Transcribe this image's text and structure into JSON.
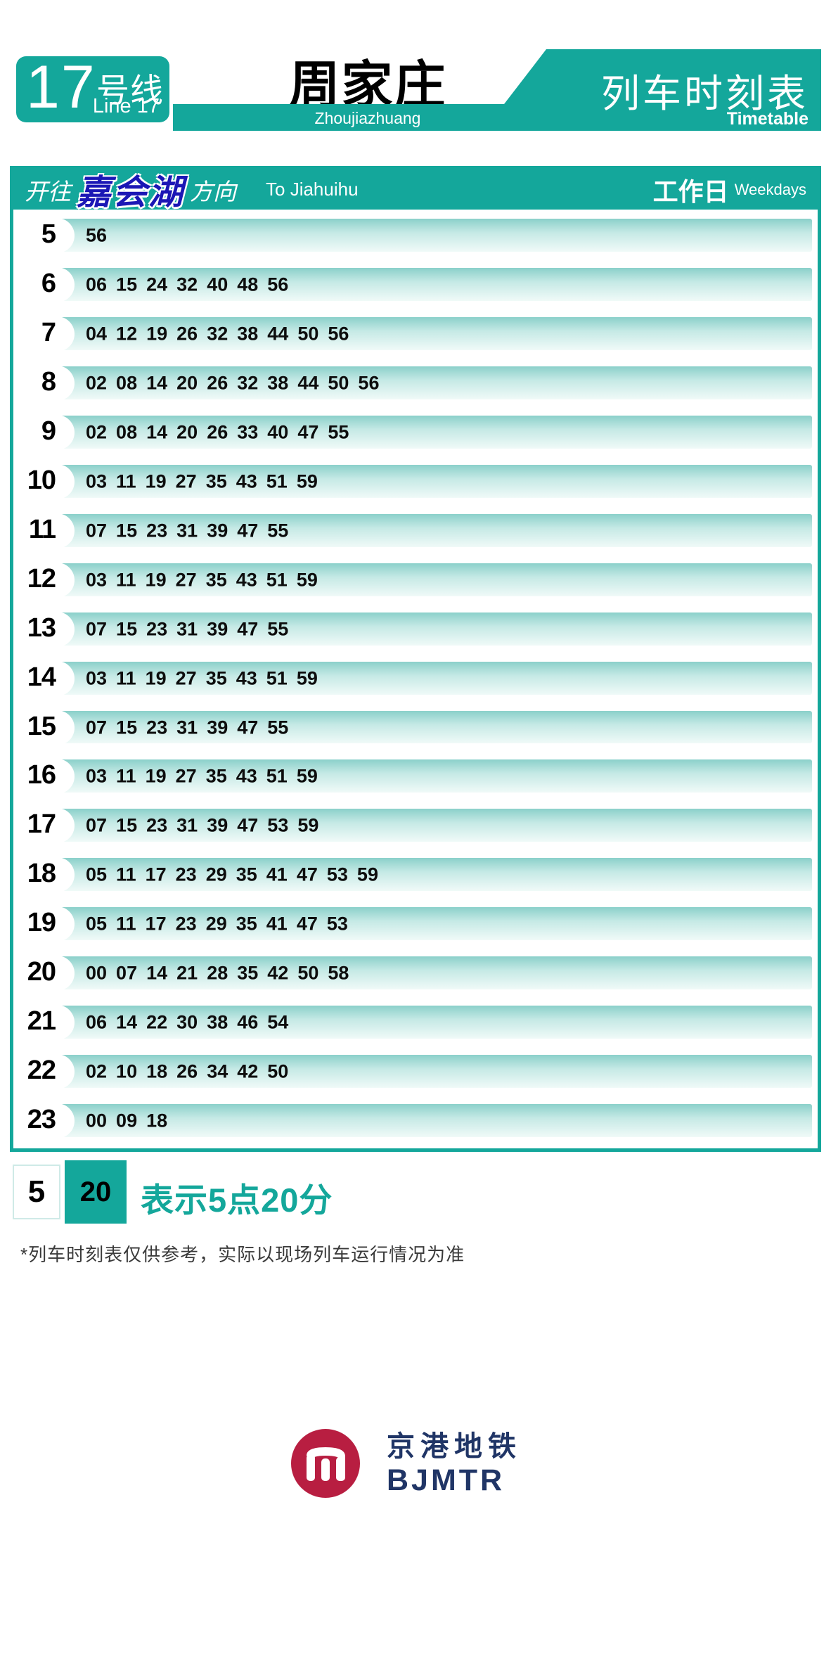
{
  "header": {
    "line_badge": {
      "number": "17",
      "suffix_zh": "号线",
      "name_en": "Line 17"
    },
    "station_zh": "周家庄",
    "station_en": "Zhoujiazhuang",
    "timetable_zh": "列车时刻表",
    "timetable_en": "Timetable"
  },
  "direction_bar": {
    "to_prefix_zh": "开往",
    "destination_zh": "嘉会湖",
    "to_suffix_zh": "方向",
    "direction_en": "To Jiahuihu",
    "day_type_zh": "工作日",
    "day_type_en": "Weekdays"
  },
  "timetable_rows": [
    {
      "hour": "5",
      "minutes": [
        "56"
      ]
    },
    {
      "hour": "6",
      "minutes": [
        "06",
        "15",
        "24",
        "32",
        "40",
        "48",
        "56"
      ]
    },
    {
      "hour": "7",
      "minutes": [
        "04",
        "12",
        "19",
        "26",
        "32",
        "38",
        "44",
        "50",
        "56"
      ]
    },
    {
      "hour": "8",
      "minutes": [
        "02",
        "08",
        "14",
        "20",
        "26",
        "32",
        "38",
        "44",
        "50",
        "56"
      ]
    },
    {
      "hour": "9",
      "minutes": [
        "02",
        "08",
        "14",
        "20",
        "26",
        "33",
        "40",
        "47",
        "55"
      ]
    },
    {
      "hour": "10",
      "minutes": [
        "03",
        "11",
        "19",
        "27",
        "35",
        "43",
        "51",
        "59"
      ]
    },
    {
      "hour": "11",
      "minutes": [
        "07",
        "15",
        "23",
        "31",
        "39",
        "47",
        "55"
      ]
    },
    {
      "hour": "12",
      "minutes": [
        "03",
        "11",
        "19",
        "27",
        "35",
        "43",
        "51",
        "59"
      ]
    },
    {
      "hour": "13",
      "minutes": [
        "07",
        "15",
        "23",
        "31",
        "39",
        "47",
        "55"
      ]
    },
    {
      "hour": "14",
      "minutes": [
        "03",
        "11",
        "19",
        "27",
        "35",
        "43",
        "51",
        "59"
      ]
    },
    {
      "hour": "15",
      "minutes": [
        "07",
        "15",
        "23",
        "31",
        "39",
        "47",
        "55"
      ]
    },
    {
      "hour": "16",
      "minutes": [
        "03",
        "11",
        "19",
        "27",
        "35",
        "43",
        "51",
        "59"
      ]
    },
    {
      "hour": "17",
      "minutes": [
        "07",
        "15",
        "23",
        "31",
        "39",
        "47",
        "53",
        "59"
      ]
    },
    {
      "hour": "18",
      "minutes": [
        "05",
        "11",
        "17",
        "23",
        "29",
        "35",
        "41",
        "47",
        "53",
        "59"
      ]
    },
    {
      "hour": "19",
      "minutes": [
        "05",
        "11",
        "17",
        "23",
        "29",
        "35",
        "41",
        "47",
        "53"
      ]
    },
    {
      "hour": "20",
      "minutes": [
        "00",
        "07",
        "14",
        "21",
        "28",
        "35",
        "42",
        "50",
        "58"
      ]
    },
    {
      "hour": "21",
      "minutes": [
        "06",
        "14",
        "22",
        "30",
        "38",
        "46",
        "54"
      ]
    },
    {
      "hour": "22",
      "minutes": [
        "02",
        "10",
        "18",
        "26",
        "34",
        "42",
        "50"
      ]
    },
    {
      "hour": "23",
      "minutes": [
        "00",
        "09",
        "18"
      ]
    }
  ],
  "legend": {
    "hour_example": "5",
    "minute_example": "20",
    "description_zh": "表示5点20分"
  },
  "footnote_zh": "*列车时刻表仅供参考，实际以现场列车运行情况为准",
  "logo": {
    "operator_zh": "京港地铁",
    "operator_en": "BJMTR"
  },
  "colors": {
    "primary_teal": "#14A79B",
    "row_gradient_top": "#8BD0CA",
    "row_gradient_bottom": "#F0FAF8",
    "destination_blue": "#1B17B5",
    "logo_red": "#B81E41",
    "logo_navy": "#203566"
  }
}
